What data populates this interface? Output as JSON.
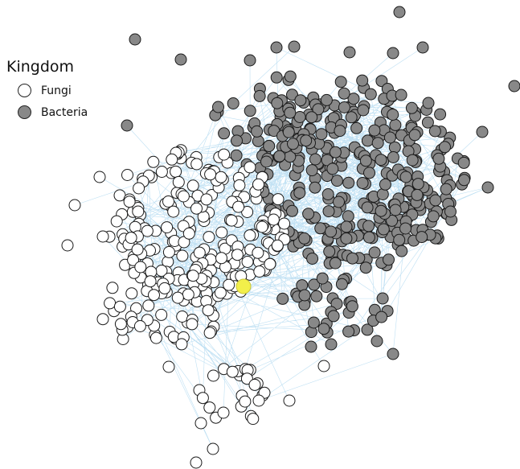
{
  "legend": {
    "title": "Kingdom",
    "items": [
      {
        "label": "Fungi",
        "color": "#ffffff"
      },
      {
        "label": "Bacteria",
        "color": "#888888"
      }
    ]
  },
  "colors": {
    "fungi_fill": "#ffffff",
    "bacteria_fill": "#888888",
    "node_stroke": "#1a1a1a",
    "highlight_fill": "#f2ef4a",
    "edge": "#bfe0f3"
  }
}
